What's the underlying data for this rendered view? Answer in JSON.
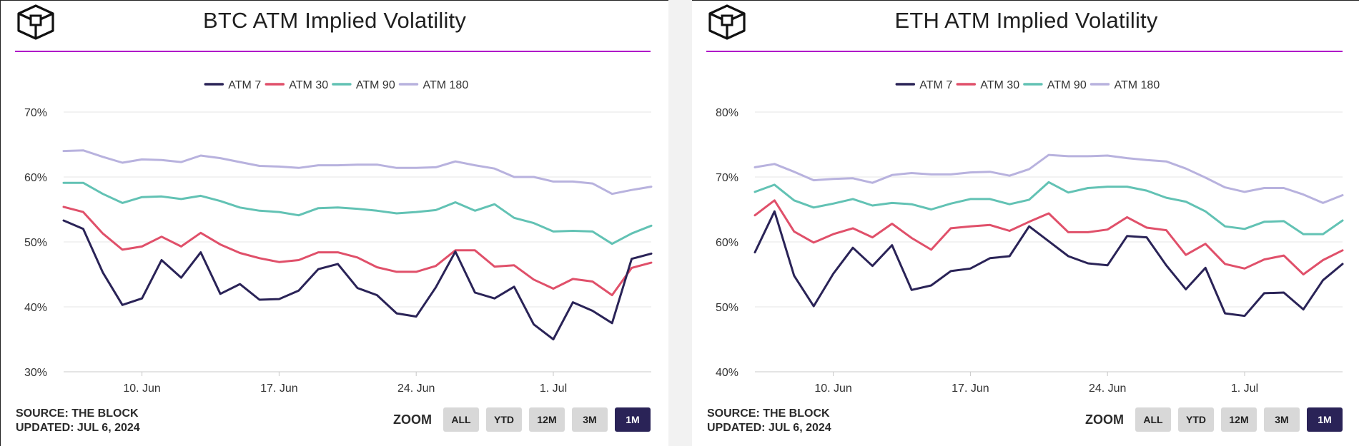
{
  "panels": [
    {
      "title": "BTC ATM Implied Volatility",
      "source": "SOURCE: THE BLOCK",
      "updated": "UPDATED: JUL 6, 2024",
      "zoom_label": "ZOOM",
      "zoom_options": [
        "ALL",
        "YTD",
        "12M",
        "3M",
        "1M"
      ],
      "zoom_active": "1M"
    },
    {
      "title": "ETH ATM Implied Volatility",
      "source": "SOURCE: THE BLOCK",
      "updated": "UPDATED: JUL 6, 2024",
      "zoom_label": "ZOOM",
      "zoom_options": [
        "ALL",
        "YTD",
        "12M",
        "3M",
        "1M"
      ],
      "zoom_active": "1M"
    }
  ],
  "colors": {
    "ATM 7": "#2a2357",
    "ATM 30": "#e0506a",
    "ATM 90": "#62c2b4",
    "ATM 180": "#b8b2de",
    "accent_rule": "#b010c8",
    "zoom_active_bg": "#2a2357"
  },
  "chart_data": [
    {
      "type": "line",
      "title": "BTC ATM Implied Volatility",
      "x": [
        "2024-06-06",
        "2024-06-07",
        "2024-06-08",
        "2024-06-09",
        "2024-06-10",
        "2024-06-11",
        "2024-06-12",
        "2024-06-13",
        "2024-06-14",
        "2024-06-15",
        "2024-06-16",
        "2024-06-17",
        "2024-06-18",
        "2024-06-19",
        "2024-06-20",
        "2024-06-21",
        "2024-06-22",
        "2024-06-23",
        "2024-06-24",
        "2024-06-25",
        "2024-06-26",
        "2024-06-27",
        "2024-06-28",
        "2024-06-29",
        "2024-06-30",
        "2024-07-01",
        "2024-07-02",
        "2024-07-03",
        "2024-07-04",
        "2024-07-05",
        "2024-07-06"
      ],
      "x_tick_labels": [
        "10. Jun",
        "17. Jun",
        "24. Jun",
        "1. Jul"
      ],
      "x_tick_values": [
        "2024-06-10",
        "2024-06-17",
        "2024-06-24",
        "2024-07-01"
      ],
      "y_tick_labels": [
        "30%",
        "40%",
        "50%",
        "60%",
        "70%"
      ],
      "ylim": [
        30,
        70
      ],
      "y_unit": "%",
      "grid": true,
      "legend_position": "top-center",
      "series": [
        {
          "name": "ATM 7",
          "values": [
            53.3,
            52.0,
            45.3,
            40.3,
            41.3,
            47.2,
            44.5,
            48.4,
            42.0,
            43.5,
            41.1,
            41.2,
            42.5,
            45.8,
            46.6,
            42.9,
            41.8,
            39.0,
            38.5,
            43.0,
            48.5,
            42.2,
            41.3,
            43.1,
            37.3,
            35.0,
            40.7,
            39.4,
            37.5,
            47.4,
            48.2
          ]
        },
        {
          "name": "ATM 30",
          "values": [
            55.4,
            54.6,
            51.3,
            48.8,
            49.3,
            50.8,
            49.3,
            51.4,
            49.6,
            48.3,
            47.5,
            46.9,
            47.2,
            48.4,
            48.4,
            47.6,
            46.1,
            45.4,
            45.4,
            46.3,
            48.7,
            48.7,
            46.2,
            46.4,
            44.2,
            42.8,
            44.3,
            43.9,
            41.8,
            46.0,
            46.8
          ]
        },
        {
          "name": "ATM 90",
          "values": [
            59.1,
            59.1,
            57.4,
            56.0,
            56.9,
            57.0,
            56.6,
            57.1,
            56.3,
            55.3,
            54.8,
            54.6,
            54.1,
            55.2,
            55.3,
            55.1,
            54.8,
            54.4,
            54.6,
            54.9,
            56.1,
            54.8,
            55.8,
            53.7,
            52.9,
            51.6,
            51.7,
            51.6,
            49.7,
            51.3,
            52.5
          ]
        },
        {
          "name": "ATM 180",
          "values": [
            64.0,
            64.1,
            63.1,
            62.2,
            62.7,
            62.6,
            62.3,
            63.3,
            62.9,
            62.3,
            61.7,
            61.6,
            61.4,
            61.8,
            61.8,
            61.9,
            61.9,
            61.4,
            61.4,
            61.5,
            62.4,
            61.8,
            61.3,
            60.0,
            60.0,
            59.3,
            59.3,
            59.0,
            57.4,
            58.0,
            58.5
          ]
        }
      ]
    },
    {
      "type": "line",
      "title": "ETH ATM Implied Volatility",
      "x": [
        "2024-06-06",
        "2024-06-07",
        "2024-06-08",
        "2024-06-09",
        "2024-06-10",
        "2024-06-11",
        "2024-06-12",
        "2024-06-13",
        "2024-06-14",
        "2024-06-15",
        "2024-06-16",
        "2024-06-17",
        "2024-06-18",
        "2024-06-19",
        "2024-06-20",
        "2024-06-21",
        "2024-06-22",
        "2024-06-23",
        "2024-06-24",
        "2024-06-25",
        "2024-06-26",
        "2024-06-27",
        "2024-06-28",
        "2024-06-29",
        "2024-06-30",
        "2024-07-01",
        "2024-07-02",
        "2024-07-03",
        "2024-07-04",
        "2024-07-05",
        "2024-07-06"
      ],
      "x_tick_labels": [
        "10. Jun",
        "17. Jun",
        "24. Jun",
        "1. Jul"
      ],
      "x_tick_values": [
        "2024-06-10",
        "2024-06-17",
        "2024-06-24",
        "2024-07-01"
      ],
      "y_tick_labels": [
        "40%",
        "50%",
        "60%",
        "70%",
        "80%"
      ],
      "ylim": [
        40,
        80
      ],
      "y_unit": "%",
      "grid": true,
      "legend_position": "top-center",
      "series": [
        {
          "name": "ATM 7",
          "values": [
            58.4,
            64.7,
            54.8,
            50.1,
            55.1,
            59.1,
            56.3,
            59.5,
            52.6,
            53.3,
            55.5,
            55.9,
            57.5,
            57.8,
            62.4,
            60.1,
            57.8,
            56.7,
            56.4,
            60.9,
            60.7,
            56.4,
            52.7,
            56.0,
            49.0,
            48.6,
            52.1,
            52.2,
            49.6,
            54.1,
            56.6
          ]
        },
        {
          "name": "ATM 30",
          "values": [
            64.1,
            66.4,
            61.6,
            59.9,
            61.2,
            62.1,
            60.7,
            62.8,
            60.6,
            58.8,
            62.1,
            62.4,
            62.6,
            61.7,
            63.1,
            64.4,
            61.5,
            61.5,
            61.9,
            63.8,
            62.2,
            61.8,
            58.0,
            59.7,
            56.6,
            55.9,
            57.3,
            57.9,
            55.0,
            57.2,
            58.7
          ]
        },
        {
          "name": "ATM 90",
          "values": [
            67.7,
            68.8,
            66.4,
            65.3,
            65.9,
            66.6,
            65.6,
            66.0,
            65.8,
            65.0,
            65.9,
            66.6,
            66.6,
            65.8,
            66.5,
            69.2,
            67.6,
            68.3,
            68.5,
            68.5,
            67.9,
            66.8,
            66.2,
            64.7,
            62.4,
            62.0,
            63.1,
            63.2,
            61.2,
            61.2,
            63.3
          ]
        },
        {
          "name": "ATM 180",
          "values": [
            71.5,
            72.0,
            70.8,
            69.5,
            69.7,
            69.8,
            69.1,
            70.3,
            70.6,
            70.4,
            70.4,
            70.7,
            70.8,
            70.2,
            71.2,
            73.4,
            73.2,
            73.2,
            73.3,
            72.9,
            72.6,
            72.4,
            71.3,
            69.9,
            68.4,
            67.7,
            68.3,
            68.3,
            67.3,
            66.0,
            67.2
          ]
        }
      ]
    }
  ]
}
